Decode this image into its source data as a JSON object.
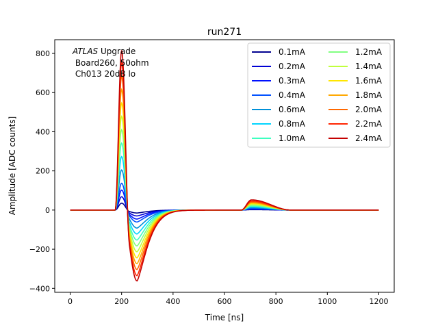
{
  "chart_data": {
    "type": "line",
    "title": "run271",
    "xlabel": "Time [ns]",
    "ylabel": "Amplitude [ADC counts]",
    "xlim": [
      -60,
      1260
    ],
    "ylim": [
      -420,
      870
    ],
    "xticks": [
      0,
      200,
      400,
      600,
      800,
      1000,
      1200
    ],
    "yticks": [
      -400,
      -200,
      0,
      200,
      400,
      600,
      800
    ],
    "xtick_labels": [
      "0",
      "200",
      "400",
      "600",
      "800",
      "1000",
      "1200"
    ],
    "ytick_labels": [
      "−400",
      "−200",
      "0",
      "200",
      "400",
      "600",
      "800"
    ],
    "grid": false,
    "legend_position": "top-right",
    "legend_columns": 2,
    "annotation": {
      "italic": "ATLAS",
      "rest": " Upgrade",
      "line2": " Board260, 50ohm",
      "line3": " Ch013 20dB lo"
    },
    "pulse_shape": {
      "baseline": 0,
      "rise_start_ns": 175,
      "peak_ns": 200,
      "undershoot_min_ns": 260,
      "undershoot_recover_ns": 620,
      "reflection_start_ns": 665,
      "reflection_peak_ns": 705,
      "reflection_end_ns": 860,
      "x_end_ns": 1200
    },
    "series": [
      {
        "name": "0.1mA",
        "color": "#00008f",
        "peak": 35,
        "undershoot": -15,
        "reflection": 2
      },
      {
        "name": "0.2mA",
        "color": "#0000d4",
        "peak": 68,
        "undershoot": -30,
        "reflection": 4
      },
      {
        "name": "0.3mA",
        "color": "#0010ff",
        "peak": 102,
        "undershoot": -46,
        "reflection": 6
      },
      {
        "name": "0.4mA",
        "color": "#0050ff",
        "peak": 137,
        "undershoot": -61,
        "reflection": 8
      },
      {
        "name": "0.6mA",
        "color": "#0090d8",
        "peak": 205,
        "undershoot": -92,
        "reflection": 12
      },
      {
        "name": "0.8mA",
        "color": "#00d4ff",
        "peak": 273,
        "undershoot": -122,
        "reflection": 16
      },
      {
        "name": "1.0mA",
        "color": "#3dffc0",
        "peak": 342,
        "undershoot": -153,
        "reflection": 20
      },
      {
        "name": "1.2mA",
        "color": "#80ff80",
        "peak": 410,
        "undershoot": -183,
        "reflection": 24
      },
      {
        "name": "1.4mA",
        "color": "#c0ff3d",
        "peak": 478,
        "undershoot": -213,
        "reflection": 29
      },
      {
        "name": "1.6mA",
        "color": "#ffe600",
        "peak": 546,
        "undershoot": -244,
        "reflection": 33
      },
      {
        "name": "1.8mA",
        "color": "#ffa800",
        "peak": 615,
        "undershoot": -274,
        "reflection": 37
      },
      {
        "name": "2.0mA",
        "color": "#ff6800",
        "peak": 683,
        "undershoot": -304,
        "reflection": 41
      },
      {
        "name": "2.2mA",
        "color": "#ff2400",
        "peak": 751,
        "undershoot": -335,
        "reflection": 46
      },
      {
        "name": "2.4mA",
        "color": "#c40000",
        "peak": 815,
        "undershoot": -362,
        "reflection": 52
      }
    ]
  }
}
